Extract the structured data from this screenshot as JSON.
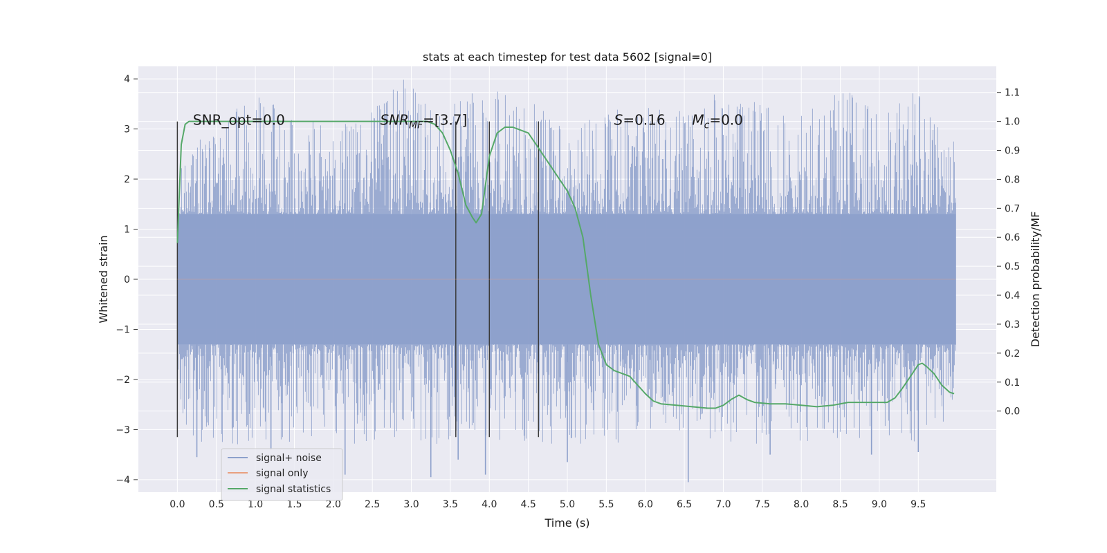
{
  "chart_data": {
    "type": "line",
    "title": "stats at each timestep for test data 5602 [signal=0]",
    "xlabel": "Time (s)",
    "ylabel": "Whitened strain",
    "ylabel_right": "Detection probability/MF",
    "xlim": [
      -0.5,
      10.5
    ],
    "ylim": [
      -4.25,
      4.25
    ],
    "ylim_right": [
      -0.28,
      1.19
    ],
    "x_ticks": [
      "0.0",
      "0.5",
      "1.0",
      "1.5",
      "2.0",
      "2.5",
      "3.0",
      "3.5",
      "4.0",
      "4.5",
      "5.0",
      "5.5",
      "6.0",
      "6.5",
      "7.0",
      "7.5",
      "8.0",
      "8.5",
      "9.0",
      "9.5"
    ],
    "y_ticks": [
      "4",
      "3",
      "2",
      "1",
      "0",
      "−1",
      "−2",
      "−3",
      "−4"
    ],
    "y_tick_values": [
      4,
      3,
      2,
      1,
      0,
      -1,
      -2,
      -3,
      -4
    ],
    "y_right_ticks": [
      "1.1",
      "1.0",
      "0.9",
      "0.8",
      "0.7",
      "0.6",
      "0.5",
      "0.4",
      "0.3",
      "0.2",
      "0.1",
      "0.0"
    ],
    "y_right_tick_values": [
      1.1,
      1.0,
      0.9,
      0.8,
      0.7,
      0.6,
      0.5,
      0.4,
      0.3,
      0.2,
      0.1,
      0.0
    ],
    "grid": true,
    "legend_position": "lower-left",
    "annotations": [
      {
        "x": 0.2,
        "y": 3.15,
        "text": "SNR_opt=0.0",
        "kind": "plain"
      },
      {
        "x": 2.6,
        "y": 3.15,
        "main": "SNR",
        "sub": "MF",
        "rest": "=[3.7]",
        "kind": "subscript"
      },
      {
        "x": 5.6,
        "y": 3.15,
        "main": "S",
        "sub": "",
        "rest": "=0.16",
        "kind": "subscript"
      },
      {
        "x": 6.6,
        "y": 3.15,
        "main": "M",
        "sub": "c",
        "rest": "=0.0",
        "kind": "subscript"
      }
    ],
    "vertical_markers": [
      0.0,
      3.57,
      4.0,
      4.63
    ],
    "marker_span": [
      -3.15,
      3.15
    ],
    "series": [
      {
        "name": "signal+ noise",
        "axis": "left",
        "color": "#8da0cb",
        "t_range": [
          0.0,
          9.98
        ],
        "envelope": [
          {
            "t": 0.0,
            "y": 2.4
          },
          {
            "t": 0.3,
            "y": 2.8
          },
          {
            "t": 0.6,
            "y": 3.1
          },
          {
            "t": 1.0,
            "y": 3.85
          },
          {
            "t": 1.5,
            "y": 3.3
          },
          {
            "t": 2.0,
            "y": 3.0
          },
          {
            "t": 2.5,
            "y": 3.4
          },
          {
            "t": 2.9,
            "y": 4.05
          },
          {
            "t": 3.3,
            "y": 3.3
          },
          {
            "t": 4.0,
            "y": 3.9
          },
          {
            "t": 4.5,
            "y": 3.7
          },
          {
            "t": 5.0,
            "y": 3.0
          },
          {
            "t": 5.5,
            "y": 3.4
          },
          {
            "t": 6.0,
            "y": 3.5
          },
          {
            "t": 6.5,
            "y": 3.4
          },
          {
            "t": 7.0,
            "y": 3.8
          },
          {
            "t": 7.5,
            "y": 3.5
          },
          {
            "t": 8.0,
            "y": 3.3
          },
          {
            "t": 8.5,
            "y": 3.85
          },
          {
            "t": 9.0,
            "y": 3.4
          },
          {
            "t": 9.5,
            "y": 3.8
          },
          {
            "t": 9.98,
            "y": 2.7
          }
        ],
        "lower_extremes": [
          {
            "t": 0.25,
            "y": -3.55
          },
          {
            "t": 1.2,
            "y": -3.4
          },
          {
            "t": 2.15,
            "y": -3.9
          },
          {
            "t": 3.25,
            "y": -3.95
          },
          {
            "t": 3.6,
            "y": -3.6
          },
          {
            "t": 3.95,
            "y": -3.9
          },
          {
            "t": 5.0,
            "y": -3.65
          },
          {
            "t": 6.55,
            "y": -4.05
          },
          {
            "t": 7.6,
            "y": -3.5
          },
          {
            "t": 8.9,
            "y": -3.5
          },
          {
            "t": 9.5,
            "y": -3.45
          }
        ]
      },
      {
        "name": "signal only",
        "axis": "left",
        "color": "#e9a07e",
        "t": [
          0.0,
          9.98
        ],
        "y": [
          0.0,
          0.0
        ]
      },
      {
        "name": "signal statistics",
        "axis": "right",
        "color": "#55a868",
        "t": [
          0.0,
          0.05,
          0.1,
          0.15,
          0.2,
          0.3,
          0.5,
          1.0,
          1.5,
          2.0,
          2.5,
          3.0,
          3.2,
          3.3,
          3.4,
          3.5,
          3.6,
          3.7,
          3.78,
          3.83,
          3.9,
          4.0,
          4.1,
          4.2,
          4.3,
          4.4,
          4.5,
          4.6,
          4.7,
          4.8,
          4.9,
          5.0,
          5.1,
          5.2,
          5.3,
          5.4,
          5.5,
          5.6,
          5.7,
          5.8,
          5.9,
          6.0,
          6.1,
          6.2,
          6.4,
          6.6,
          6.8,
          6.9,
          7.0,
          7.1,
          7.2,
          7.3,
          7.4,
          7.6,
          7.8,
          8.0,
          8.2,
          8.4,
          8.6,
          8.8,
          9.0,
          9.1,
          9.2,
          9.3,
          9.4,
          9.5,
          9.55,
          9.6,
          9.7,
          9.8,
          9.9,
          9.96
        ],
        "y": [
          0.58,
          0.92,
          0.99,
          1.0,
          1.0,
          1.0,
          1.0,
          1.0,
          1.0,
          1.0,
          1.0,
          1.0,
          1.0,
          0.99,
          0.96,
          0.9,
          0.82,
          0.71,
          0.67,
          0.65,
          0.68,
          0.88,
          0.96,
          0.98,
          0.98,
          0.97,
          0.96,
          0.92,
          0.88,
          0.84,
          0.8,
          0.76,
          0.7,
          0.6,
          0.4,
          0.23,
          0.16,
          0.14,
          0.13,
          0.12,
          0.09,
          0.06,
          0.035,
          0.025,
          0.02,
          0.015,
          0.01,
          0.01,
          0.02,
          0.04,
          0.055,
          0.04,
          0.03,
          0.025,
          0.025,
          0.02,
          0.015,
          0.02,
          0.03,
          0.03,
          0.03,
          0.03,
          0.045,
          0.08,
          0.12,
          0.16,
          0.165,
          0.155,
          0.13,
          0.09,
          0.065,
          0.06
        ]
      }
    ]
  },
  "legend": {
    "items": [
      {
        "label": "signal+ noise",
        "color": "#8da0cb"
      },
      {
        "label": "signal only",
        "color": "#e9a07e"
      },
      {
        "label": "signal statistics",
        "color": "#55a868"
      }
    ]
  }
}
